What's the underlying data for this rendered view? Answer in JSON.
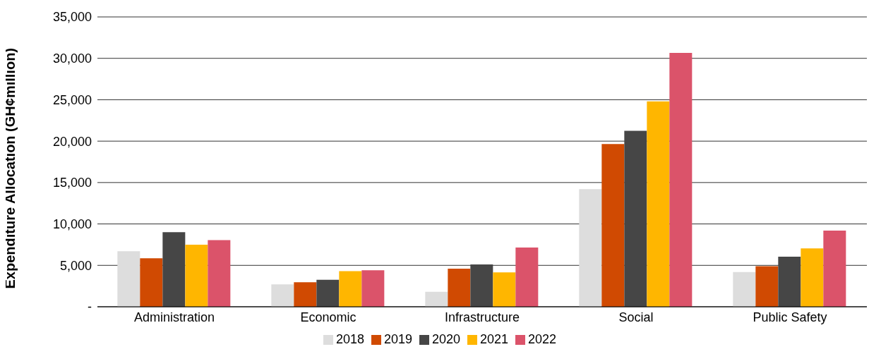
{
  "chart_data": {
    "type": "bar",
    "ylabel": "Expenditure Allocation (GH¢million)",
    "categories": [
      "Administration",
      "Economic",
      "Infrastructure",
      "Social",
      "Public Safety"
    ],
    "series": [
      {
        "name": "2018",
        "color": "#dddddd",
        "values": [
          6700,
          2700,
          1800,
          14200,
          4200
        ]
      },
      {
        "name": "2019",
        "color": "#d04a02",
        "values": [
          5850,
          2950,
          4600,
          19650,
          4900
        ]
      },
      {
        "name": "2020",
        "color": "#464646",
        "values": [
          9000,
          3250,
          5100,
          21250,
          6050
        ]
      },
      {
        "name": "2021",
        "color": "#ffb600",
        "values": [
          7500,
          4300,
          4150,
          24800,
          7050
        ]
      },
      {
        "name": "2022",
        "color": "#db536a",
        "values": [
          8050,
          4400,
          7150,
          30650,
          9200
        ]
      }
    ],
    "ylim": [
      0,
      35000
    ],
    "yticks": [
      {
        "value": 0,
        "label": "-"
      },
      {
        "value": 5000,
        "label": "5,000"
      },
      {
        "value": 10000,
        "label": "10,000"
      },
      {
        "value": 15000,
        "label": "15,000"
      },
      {
        "value": 20000,
        "label": "20,000"
      },
      {
        "value": 25000,
        "label": "25,000"
      },
      {
        "value": 30000,
        "label": "30,000"
      },
      {
        "value": 35000,
        "label": "35,000"
      }
    ],
    "grid": "y",
    "legend": "bottom"
  }
}
